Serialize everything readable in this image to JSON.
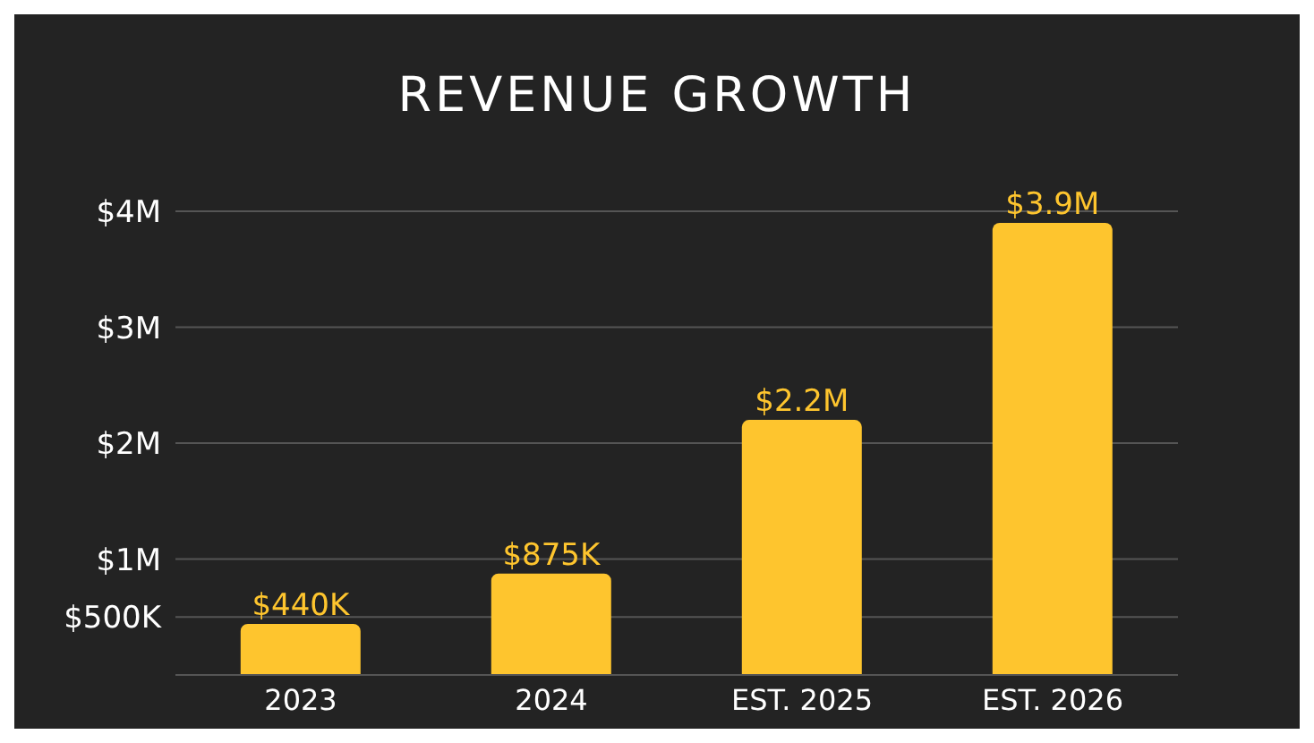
{
  "chart_data": {
    "type": "bar",
    "title": "REVENUE GROWTH",
    "categories": [
      "2023",
      "2024",
      "EST. 2025",
      "EST. 2026"
    ],
    "values": [
      440000,
      875000,
      2200000,
      3900000
    ],
    "value_labels": [
      "$440K",
      "$875K",
      "$2.2M",
      "$3.9M"
    ],
    "color": "#fec52e",
    "ylim": [
      0,
      4000000
    ],
    "yticks": [
      {
        "value": 500000,
        "label": "$500K"
      },
      {
        "value": 1000000,
        "label": "$1M"
      },
      {
        "value": 2000000,
        "label": "$2M"
      },
      {
        "value": 3000000,
        "label": "$3M"
      },
      {
        "value": 4000000,
        "label": "$4M"
      }
    ],
    "grid": "y"
  }
}
